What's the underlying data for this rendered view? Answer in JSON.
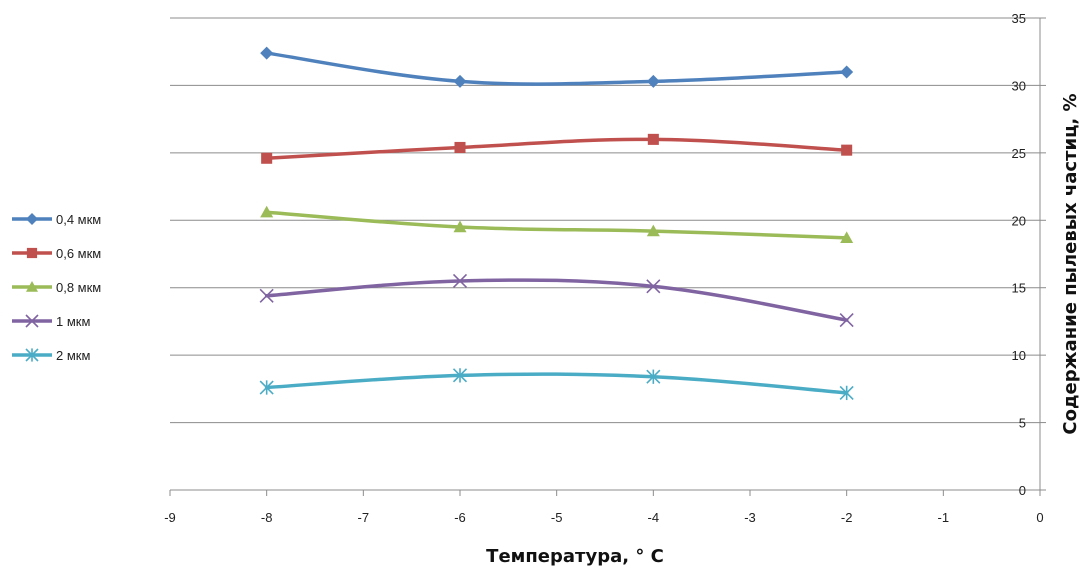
{
  "chart_data": {
    "type": "line",
    "title": "",
    "xlabel": "Температура, ° C",
    "ylabel": "Содержание пылевых частиц, %",
    "xlim": [
      -9,
      0
    ],
    "ylim": [
      0,
      35
    ],
    "x_ticks": [
      "-9",
      "-8",
      "-7",
      "-6",
      "-5",
      "-4",
      "-3",
      "-2",
      "-1",
      "0"
    ],
    "y_ticks": [
      "0",
      "5",
      "10",
      "15",
      "20",
      "25",
      "30",
      "35"
    ],
    "y_axis_side": "right",
    "grid": "horizontal",
    "legend_position": "left",
    "x": [
      -8,
      -6,
      -4,
      -2
    ],
    "series": [
      {
        "name": "0,4 мкм",
        "values": [
          32.4,
          30.3,
          30.3,
          31.0
        ],
        "color": "#4F81BD",
        "marker": "diamond"
      },
      {
        "name": "0,6 мкм",
        "values": [
          24.6,
          25.4,
          26.0,
          25.2
        ],
        "color": "#C0504D",
        "marker": "square"
      },
      {
        "name": "0,8 мкм",
        "values": [
          20.6,
          19.5,
          19.2,
          18.7
        ],
        "color": "#9BBB59",
        "marker": "triangle"
      },
      {
        "name": "1 мкм",
        "values": [
          14.4,
          15.5,
          15.1,
          12.6
        ],
        "color": "#8064A2",
        "marker": "x"
      },
      {
        "name": "2 мкм",
        "values": [
          7.6,
          8.5,
          8.4,
          7.2
        ],
        "color": "#4BACC6",
        "marker": "star"
      }
    ]
  }
}
